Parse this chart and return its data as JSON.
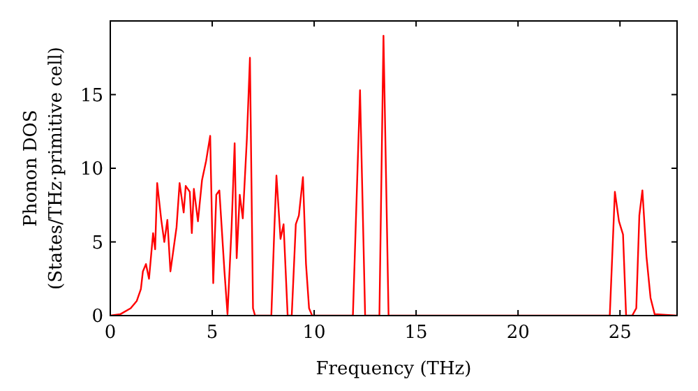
{
  "chart_data": {
    "type": "line",
    "xlabel": "Frequency (THz)",
    "ylabel": "Phonon DOS\n(States/THz·primitive cell)",
    "xlim": [
      0,
      27.8
    ],
    "ylim": [
      0,
      20
    ],
    "xticks": [
      0,
      5,
      10,
      15,
      20,
      25
    ],
    "yticks": [
      0,
      5,
      10,
      15
    ],
    "grid": false,
    "marker": "none",
    "line_style": "solid",
    "series": [
      {
        "color": "#ff0000",
        "x": [
          0,
          0.5,
          1,
          1.3,
          1.5,
          1.6,
          1.75,
          1.9,
          2.1,
          2.2,
          2.3,
          2.5,
          2.65,
          2.8,
          2.95,
          3.1,
          3.25,
          3.4,
          3.6,
          3.7,
          3.9,
          4.0,
          4.1,
          4.3,
          4.5,
          4.7,
          4.9,
          5.05,
          5.2,
          5.35,
          5.6,
          5.75,
          5.95,
          6.1,
          6.2,
          6.35,
          6.5,
          6.7,
          6.85,
          7.0,
          7.1,
          7.9,
          8.05,
          8.15,
          8.35,
          8.5,
          8.7,
          8.9,
          9.1,
          9.25,
          9.45,
          9.6,
          9.75,
          9.9,
          11.9,
          12.25,
          12.5,
          13.2,
          13.4,
          13.65,
          24.5,
          24.75,
          24.95,
          25.15,
          25.3,
          25.6,
          25.8,
          25.95,
          26.1,
          26.3,
          26.5,
          26.7,
          27.8
        ],
        "values": [
          0,
          0.1,
          0.5,
          1,
          1.8,
          3,
          3.5,
          2.5,
          5.6,
          4.5,
          9,
          6.5,
          5,
          6.5,
          3,
          4.5,
          6,
          9,
          7,
          8.8,
          8.4,
          5.6,
          8.6,
          6.4,
          9.2,
          10.5,
          12.2,
          2.2,
          8.2,
          8.5,
          3,
          0.1,
          6,
          11.7,
          3.9,
          8.2,
          6.6,
          12,
          17.5,
          0.5,
          0,
          0,
          6,
          9.5,
          5.2,
          6.2,
          0,
          0,
          6.2,
          6.8,
          9.4,
          3.5,
          0.5,
          0,
          0,
          15.3,
          0,
          0,
          19,
          0,
          0,
          8.4,
          6.4,
          5.5,
          0,
          0,
          0.5,
          6.8,
          8.5,
          4,
          1.2,
          0.1,
          0
        ]
      }
    ]
  }
}
